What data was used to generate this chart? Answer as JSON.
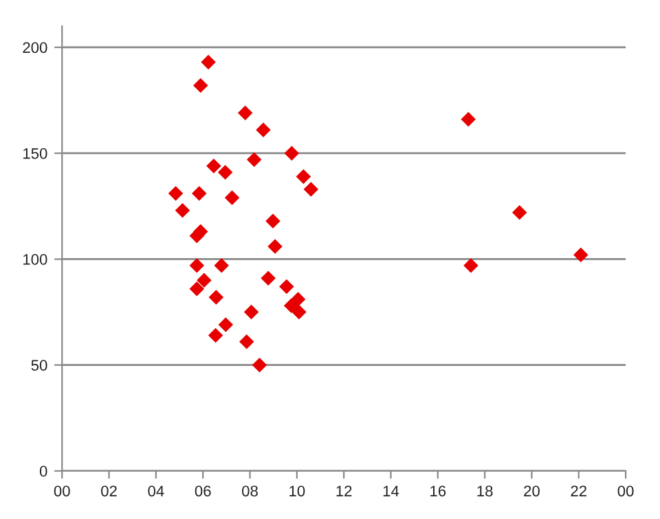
{
  "chart_data": {
    "type": "scatter",
    "x": [
      6.23,
      5.9,
      7.8,
      8.57,
      9.78,
      8.18,
      6.46,
      6.95,
      10.28,
      10.6,
      4.84,
      5.84,
      7.24,
      5.13,
      8.98,
      5.9,
      5.74,
      9.07,
      5.74,
      6.79,
      6.05,
      8.78,
      5.74,
      9.56,
      6.56,
      10.05,
      9.76,
      10.09,
      8.06,
      6.97,
      6.54,
      7.86,
      8.41,
      19.48,
      17.41,
      22.09,
      17.3
    ],
    "values": [
      193,
      182,
      169,
      161,
      150,
      147,
      144,
      141,
      139,
      133,
      131,
      131,
      129,
      123,
      118,
      113,
      111,
      106,
      97,
      97,
      90,
      91,
      86,
      87,
      82,
      81,
      78,
      75,
      75,
      69,
      64,
      61,
      50,
      122,
      97,
      102,
      166
    ],
    "color": "#e60000",
    "marker": "diamond",
    "xlim": [
      0,
      24
    ],
    "xticks": [
      {
        "value": 0,
        "label": "00"
      },
      {
        "value": 2,
        "label": "02"
      },
      {
        "value": 4,
        "label": "04"
      },
      {
        "value": 6,
        "label": "06"
      },
      {
        "value": 8,
        "label": "08"
      },
      {
        "value": 10,
        "label": "10"
      },
      {
        "value": 12,
        "label": "12"
      },
      {
        "value": 14,
        "label": "14"
      },
      {
        "value": 16,
        "label": "16"
      },
      {
        "value": 18,
        "label": "18"
      },
      {
        "value": 20,
        "label": "20"
      },
      {
        "value": 22,
        "label": "22"
      },
      {
        "value": 24,
        "label": "00"
      }
    ],
    "ylim": [
      0,
      210
    ],
    "yticks": [
      0,
      50,
      100,
      150,
      200
    ],
    "grid": "y",
    "legend": false
  }
}
